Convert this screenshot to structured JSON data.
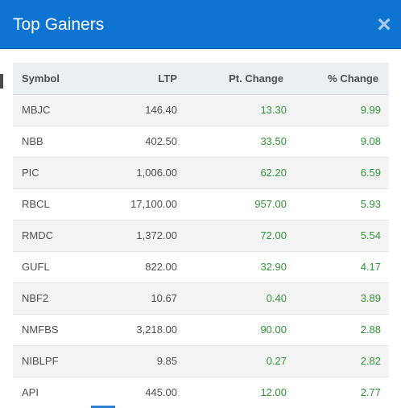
{
  "modal": {
    "title": "Top Gainers",
    "close_glyph": "×"
  },
  "table": {
    "columns": [
      "Symbol",
      "LTP",
      "Pt. Change",
      "% Change"
    ],
    "rows": [
      {
        "symbol": "MBJC",
        "ltp": "146.40",
        "pt_change": "13.30",
        "pct_change": "9.99"
      },
      {
        "symbol": "NBB",
        "ltp": "402.50",
        "pt_change": "33.50",
        "pct_change": "9.08"
      },
      {
        "symbol": "PIC",
        "ltp": "1,006.00",
        "pt_change": "62.20",
        "pct_change": "6.59"
      },
      {
        "symbol": "RBCL",
        "ltp": "17,100.00",
        "pt_change": "957.00",
        "pct_change": "5.93"
      },
      {
        "symbol": "RMDC",
        "ltp": "1,372.00",
        "pt_change": "72.00",
        "pct_change": "5.54"
      },
      {
        "symbol": "GUFL",
        "ltp": "822.00",
        "pt_change": "32.90",
        "pct_change": "4.17"
      },
      {
        "symbol": "NBF2",
        "ltp": "10.67",
        "pt_change": "0.40",
        "pct_change": "3.89"
      },
      {
        "symbol": "NMFBS",
        "ltp": "3,218.00",
        "pt_change": "90.00",
        "pct_change": "2.88"
      },
      {
        "symbol": "NIBLPF",
        "ltp": "9.85",
        "pt_change": "0.27",
        "pct_change": "2.82"
      },
      {
        "symbol": "API",
        "ltp": "445.00",
        "pt_change": "12.00",
        "pct_change": "2.77"
      }
    ]
  },
  "colors": {
    "header_bg": "#0d75d1",
    "positive": "#2f9535",
    "table_header_bg": "#ebeef2"
  },
  "icons": {
    "close": "close-icon"
  }
}
